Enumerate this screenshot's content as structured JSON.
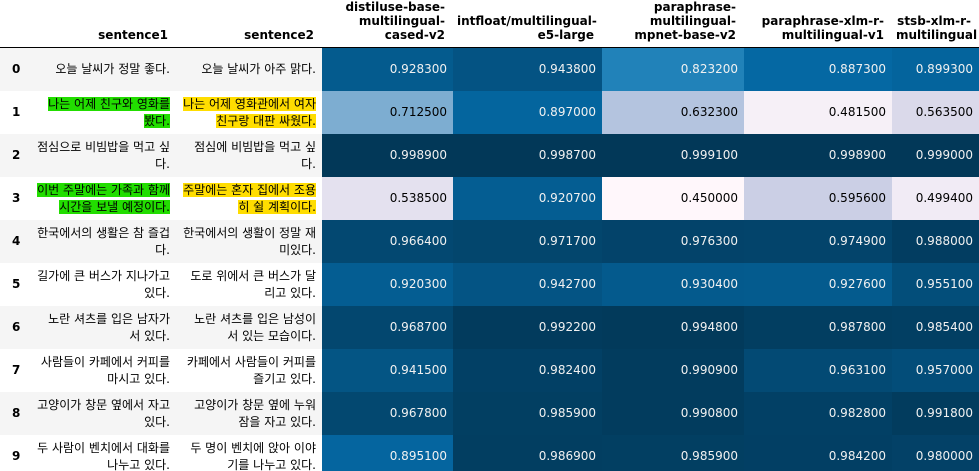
{
  "columns": {
    "index": "",
    "sentence1": "sentence1",
    "sentence2": "sentence2",
    "models": [
      "distiluse-base-multilingual-cased-v2",
      "intfloat/multilingual-e5-large",
      "paraphrase-multilingual-mpnet-base-v2",
      "paraphrase-xlm-r-multilingual-v1",
      "stsb-xlm-r-multilingual"
    ]
  },
  "colors": {
    "highlight_green": "#22dd00",
    "highlight_yellow": "#ffdd00",
    "scale_low": "#fff7fb",
    "scale_high": "#023858"
  },
  "chart_data": {
    "type": "table",
    "value_range": [
      0.45,
      0.9991
    ],
    "rows": [
      {
        "index": "0",
        "sentence1": "오늘 날씨가 정말 좋다.",
        "sentence2": "오늘 날씨가 아주 맑다.",
        "highlight": "",
        "values": [
          "0.928300",
          "0.943800",
          "0.823200",
          "0.887300",
          "0.899300"
        ]
      },
      {
        "index": "1",
        "sentence1": "나는 어제 친구와 영화를 봤다.",
        "sentence2": "나는 어제 영화관에서 여자친구랑 대판 싸웠다.",
        "highlight": "yes",
        "values": [
          "0.712500",
          "0.897000",
          "0.632300",
          "0.481500",
          "0.563500"
        ]
      },
      {
        "index": "2",
        "sentence1": "점심으로 비빔밥을 먹고 싶다.",
        "sentence2": "점심에 비빔밥을 먹고 싶다.",
        "highlight": "",
        "values": [
          "0.998900",
          "0.998700",
          "0.999100",
          "0.998900",
          "0.999000"
        ]
      },
      {
        "index": "3",
        "sentence1": "이번 주말에는 가족과 함께 시간을 보낼 예정이다.",
        "sentence2": "주말에는 혼자 집에서 조용히 쉴 계획이다.",
        "highlight": "yes",
        "values": [
          "0.538500",
          "0.920700",
          "0.450000",
          "0.595600",
          "0.499400"
        ]
      },
      {
        "index": "4",
        "sentence1": "한국에서의 생활은 참 즐겁다.",
        "sentence2": "한국에서의 생활이 정말 재미있다.",
        "highlight": "",
        "values": [
          "0.966400",
          "0.971700",
          "0.976300",
          "0.974900",
          "0.988000"
        ]
      },
      {
        "index": "5",
        "sentence1": "길가에 큰 버스가 지나가고 있다.",
        "sentence2": "도로 위에서 큰 버스가 달리고 있다.",
        "highlight": "",
        "values": [
          "0.920300",
          "0.942700",
          "0.930400",
          "0.927600",
          "0.955100"
        ]
      },
      {
        "index": "6",
        "sentence1": "노란 셔츠를 입은 남자가 서 있다.",
        "sentence2": "노란 셔츠를 입은 남성이 서 있는 모습이다.",
        "highlight": "",
        "values": [
          "0.968700",
          "0.992200",
          "0.994800",
          "0.987800",
          "0.985400"
        ]
      },
      {
        "index": "7",
        "sentence1": "사람들이 카페에서 커피를 마시고 있다.",
        "sentence2": "카페에서 사람들이 커피를 즐기고 있다.",
        "highlight": "",
        "values": [
          "0.941500",
          "0.982400",
          "0.990900",
          "0.963100",
          "0.957000"
        ]
      },
      {
        "index": "8",
        "sentence1": "고양이가 창문 옆에서 자고 있다.",
        "sentence2": "고양이가 창문 옆에 누워 잠을 자고 있다.",
        "highlight": "",
        "values": [
          "0.967800",
          "0.985900",
          "0.990800",
          "0.982800",
          "0.991800"
        ]
      },
      {
        "index": "9",
        "sentence1": "두 사람이 벤치에서 대화를 나누고 있다.",
        "sentence2": "두 명이 벤치에 앉아 이야기를 나누고 있다.",
        "highlight": "",
        "values": [
          "0.895100",
          "0.986900",
          "0.985900",
          "0.984200",
          "0.980000"
        ]
      }
    ]
  }
}
